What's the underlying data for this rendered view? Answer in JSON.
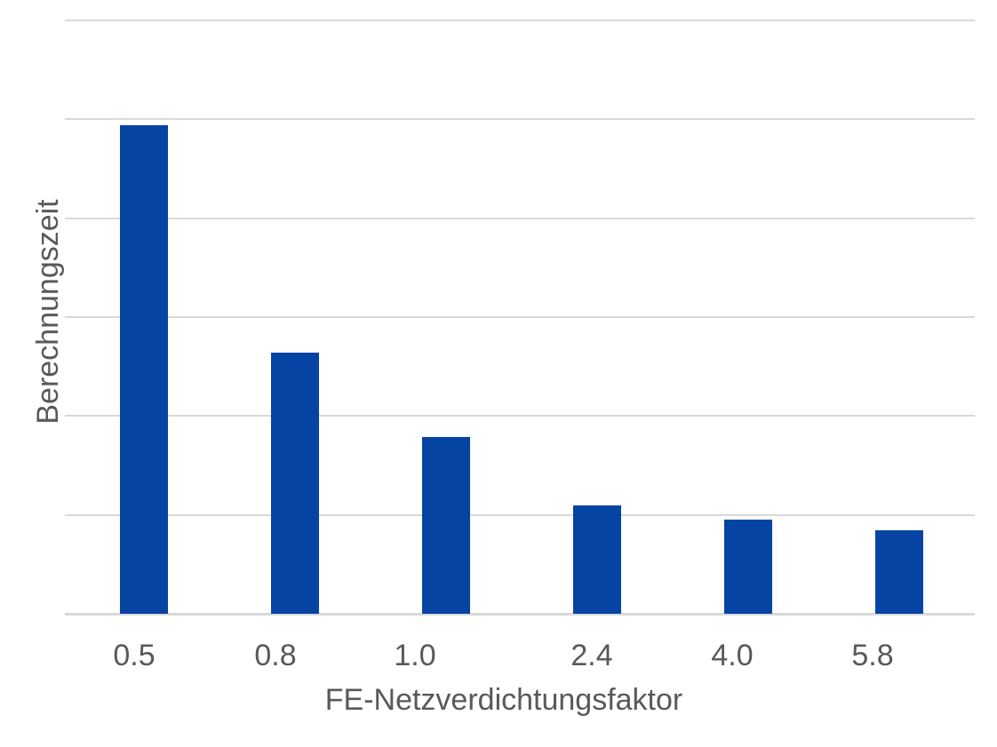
{
  "chart_data": {
    "type": "bar",
    "title": "",
    "categories": [
      "0.5",
      "0.8",
      "1.0",
      "2.4",
      "4.0",
      "5.8"
    ],
    "values": [
      4.94,
      2.64,
      1.79,
      1.1,
      0.95,
      0.84
    ],
    "xlabel": "FE-Netzverdichtungsfaktor",
    "ylabel": "Berechnungszeit",
    "ylim": [
      0,
      6
    ],
    "y_tick_labels": [],
    "gridlines": {
      "horizontal": true,
      "count": 7,
      "spacing_units": 1
    },
    "legend": null,
    "colors": {
      "bar": "#0544A3",
      "grid": "#D9D9D9",
      "text": "#595959",
      "background": "#FFFFFF"
    }
  }
}
